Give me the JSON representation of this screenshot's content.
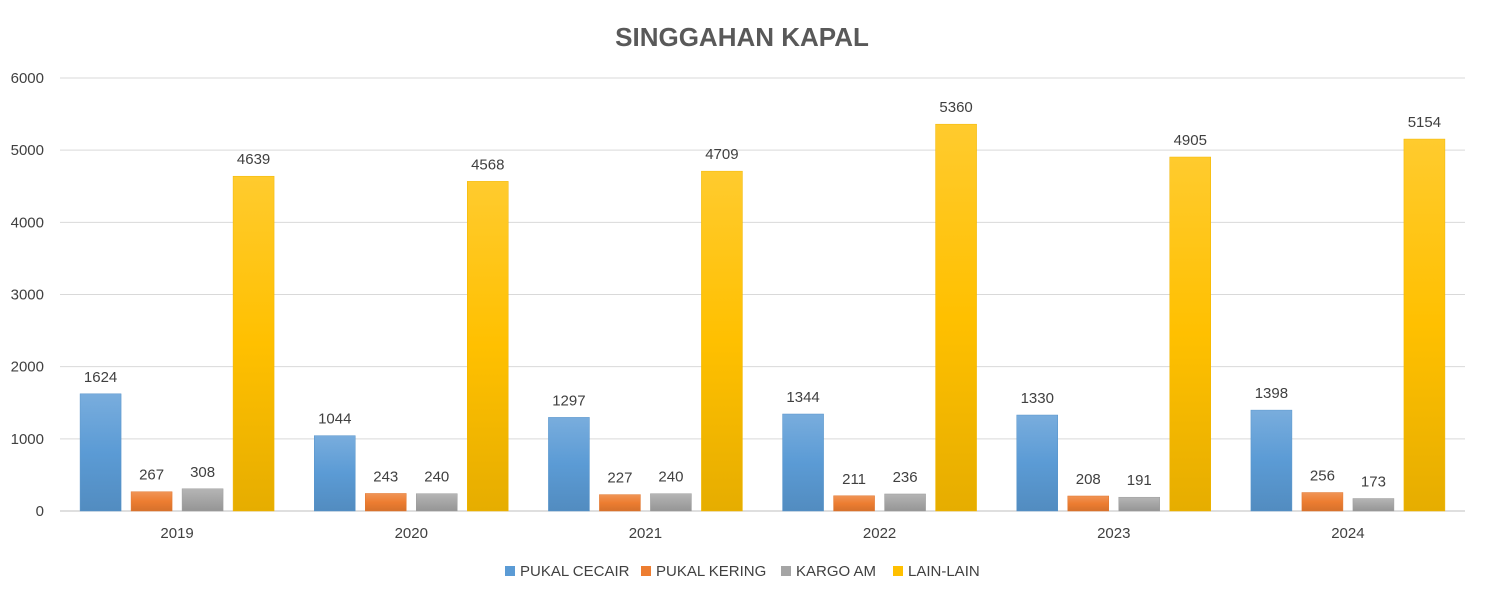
{
  "chart_data": {
    "type": "bar",
    "title": "SINGGAHAN  KAPAL",
    "xlabel": "",
    "ylabel": "",
    "categories": [
      "2019",
      "2020",
      "2021",
      "2022",
      "2023",
      "2024"
    ],
    "ylim": [
      0,
      6000
    ],
    "yticks": [
      0,
      1000,
      2000,
      3000,
      4000,
      5000,
      6000
    ],
    "grid": true,
    "legend_position": "bottom",
    "data_labels": true,
    "series": [
      {
        "name": "PUKAL CECAIR",
        "color": "#5B9BD5",
        "values": [
          1624,
          1044,
          1297,
          1344,
          1330,
          1398
        ]
      },
      {
        "name": "PUKAL KERING",
        "color": "#ED7D31",
        "values": [
          267,
          243,
          227,
          211,
          208,
          256
        ]
      },
      {
        "name": "KARGO AM",
        "color": "#A5A5A5",
        "values": [
          308,
          240,
          240,
          236,
          191,
          173
        ]
      },
      {
        "name": "LAIN-LAIN",
        "color": "#FFC000",
        "values": [
          4639,
          4568,
          4709,
          5360,
          4905,
          5154
        ]
      }
    ]
  }
}
